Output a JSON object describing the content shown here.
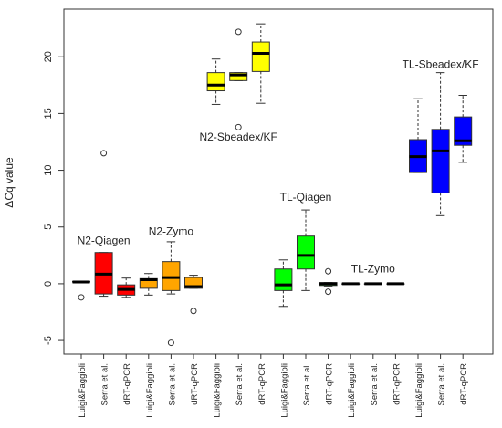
{
  "chart_data": {
    "type": "boxplot",
    "ylabel": "ΔCq value",
    "ylim": [
      -6.2,
      24.2
    ],
    "yticks": [
      -5,
      0,
      5,
      10,
      15,
      20
    ],
    "grid": false,
    "categories": [
      "Luigi&Faggioli",
      "Serra et al.",
      "dRT-qPCR",
      "Luigi&Faggioli",
      "Serra et al.",
      "dRT-qPCR",
      "Luigi&Faggioli",
      "Serra et al.",
      "dRT-qPCR",
      "Luigi&Faggioli",
      "Serra et al.",
      "dRT-qPCR",
      "Luigi&Faggioli",
      "Serra et al.",
      "dRT-qPCR",
      "Luigi&Faggioli",
      "Serra et al.",
      "dRT-qPCR"
    ],
    "groups": [
      {
        "name": "N2-Qiagen",
        "color": "#ff0000",
        "label_x": 2,
        "label_y": 3.5
      },
      {
        "name": "N2-Zymo",
        "color": "#ffa500",
        "label_x": 5,
        "label_y": 4.3
      },
      {
        "name": "N2-Sbeadex/KF",
        "color": "#ffff00",
        "label_x": 8,
        "label_y": 12.6
      },
      {
        "name": "TL-Qiagen",
        "color": "#00ff00",
        "label_x": 11,
        "label_y": 7.3
      },
      {
        "name": "TL-Zymo",
        "color": "#2ad42a",
        "label_x": 14,
        "label_y": 1.0
      },
      {
        "name": "TL-Sbeadex/KF",
        "color": "#0000ff",
        "label_x": 17,
        "label_y": 19.0
      }
    ],
    "boxes": [
      {
        "group": 0,
        "whisker_low": 0.15,
        "q1": 0.15,
        "median": 0.15,
        "q3": 0.2,
        "whisker_high": 0.2,
        "outliers": [
          -1.2
        ]
      },
      {
        "group": 0,
        "whisker_low": -1.1,
        "q1": -0.9,
        "median": 0.85,
        "q3": 2.75,
        "whisker_high": 2.75,
        "outliers": [
          11.5
        ]
      },
      {
        "group": 0,
        "whisker_low": -1.2,
        "q1": -1.0,
        "median": -0.5,
        "q3": -0.1,
        "whisker_high": 0.5,
        "outliers": []
      },
      {
        "group": 1,
        "whisker_low": -1.0,
        "q1": -0.4,
        "median": 0.35,
        "q3": 0.45,
        "whisker_high": 0.9,
        "outliers": []
      },
      {
        "group": 1,
        "whisker_low": -0.9,
        "q1": -0.6,
        "median": 0.55,
        "q3": 1.95,
        "whisker_high": 3.7,
        "outliers": [
          -5.2
        ]
      },
      {
        "group": 1,
        "whisker_low": -0.4,
        "q1": -0.4,
        "median": -0.25,
        "q3": 0.55,
        "whisker_high": 0.75,
        "outliers": [
          -2.4
        ]
      },
      {
        "group": 2,
        "whisker_low": 15.8,
        "q1": 17.0,
        "median": 17.5,
        "q3": 18.6,
        "whisker_high": 19.8,
        "outliers": []
      },
      {
        "group": 2,
        "whisker_low": 17.9,
        "q1": 17.9,
        "median": 18.4,
        "q3": 18.6,
        "whisker_high": 18.6,
        "outliers": [
          22.2,
          13.8
        ]
      },
      {
        "group": 2,
        "whisker_low": 15.9,
        "q1": 18.7,
        "median": 20.3,
        "q3": 21.3,
        "whisker_high": 22.9,
        "outliers": []
      },
      {
        "group": 3,
        "whisker_low": -2.0,
        "q1": -0.6,
        "median": -0.1,
        "q3": 1.3,
        "whisker_high": 2.1,
        "outliers": []
      },
      {
        "group": 3,
        "whisker_low": -0.6,
        "q1": 1.3,
        "median": 2.5,
        "q3": 4.2,
        "whisker_high": 6.5,
        "outliers": []
      },
      {
        "group": 3,
        "whisker_low": -0.2,
        "q1": -0.15,
        "median": 0.0,
        "q3": 0.1,
        "whisker_high": 0.1,
        "outliers": [
          1.1,
          -0.7
        ]
      },
      {
        "group": 4,
        "whisker_low": 0.0,
        "q1": 0.0,
        "median": 0.0,
        "q3": 0.0,
        "whisker_high": 0.0,
        "outliers": []
      },
      {
        "group": 4,
        "whisker_low": 0.0,
        "q1": 0.0,
        "median": 0.0,
        "q3": 0.0,
        "whisker_high": 0.0,
        "outliers": []
      },
      {
        "group": 4,
        "whisker_low": 0.0,
        "q1": 0.0,
        "median": 0.0,
        "q3": 0.0,
        "whisker_high": 0.0,
        "outliers": []
      },
      {
        "group": 5,
        "whisker_low": 9.8,
        "q1": 9.8,
        "median": 11.2,
        "q3": 12.7,
        "whisker_high": 16.3,
        "outliers": []
      },
      {
        "group": 5,
        "whisker_low": 6.0,
        "q1": 8.0,
        "median": 11.7,
        "q3": 13.6,
        "whisker_high": 18.6,
        "outliers": []
      },
      {
        "group": 5,
        "whisker_low": 10.7,
        "q1": 12.2,
        "median": 12.6,
        "q3": 14.7,
        "whisker_high": 16.6,
        "outliers": []
      }
    ]
  }
}
